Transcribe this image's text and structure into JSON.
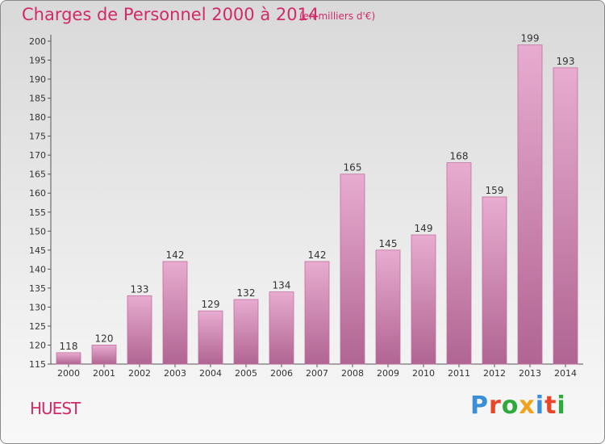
{
  "header": {
    "title": "Charges de Personnel 2000 à 2014",
    "subtitle": "(en milliers d'€)"
  },
  "footer": {
    "town": "HUEST",
    "logo_text": "Proxiti"
  },
  "colors": {
    "title": "#d02a6a",
    "bar_light": "#e6a8cc",
    "bar_dark": "#b46a96",
    "logo_letters": [
      "#3a8fd8",
      "#e8462a",
      "#2eaa3c",
      "#f0a21c",
      "#3a8fd8",
      "#e8462a",
      "#2eaa3c"
    ]
  },
  "chart_data": {
    "type": "bar",
    "title": "Charges de Personnel 2000 à 2014",
    "subtitle": "(en milliers d'€)",
    "categories": [
      "2000",
      "2001",
      "2002",
      "2003",
      "2004",
      "2005",
      "2006",
      "2007",
      "2008",
      "2009",
      "2010",
      "2011",
      "2012",
      "2013",
      "2014"
    ],
    "values": [
      118,
      120,
      133,
      142,
      129,
      132,
      134,
      142,
      165,
      145,
      149,
      168,
      159,
      199,
      193
    ],
    "xlabel": "",
    "ylabel": "",
    "ylim": [
      115,
      200
    ],
    "yticks": [
      115,
      120,
      125,
      130,
      135,
      140,
      145,
      150,
      155,
      160,
      165,
      170,
      175,
      180,
      185,
      190,
      195,
      200
    ],
    "grid": false,
    "data_labels": true
  }
}
